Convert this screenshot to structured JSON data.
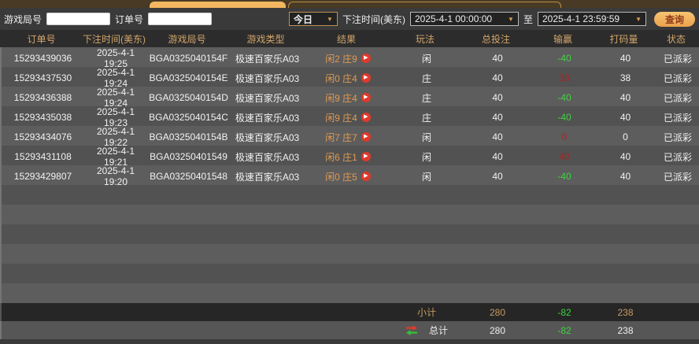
{
  "filters": {
    "game_round_label": "游戏局号",
    "game_round_value": "",
    "order_label": "订单号",
    "order_value": "",
    "range_selected": "今日",
    "dropdown_arrow": "▼",
    "bet_time_label": "下注时间(美东)",
    "start_time": "2025-4-1 00:00:00",
    "to_label": "至",
    "end_time": "2025-4-1 23:59:59",
    "query_button": "查询"
  },
  "table": {
    "headers": [
      "订单号",
      "下注时间(美东)",
      "游戏局号",
      "游戏类型",
      "结果",
      "玩法",
      "总投注",
      "输赢",
      "打码量",
      "状态"
    ],
    "play_glyph": "▶",
    "rows": [
      {
        "order_id": "15293439036",
        "bet_time": "2025-4-1 19:25",
        "round_id": "BGA0325040154F",
        "game_type": "极速百家乐A03",
        "result": "闲2 庄9",
        "play": "闲",
        "total_bet": "40",
        "win_loss": "-40",
        "win_loss_color": "green",
        "turnover": "40",
        "status": "已派彩"
      },
      {
        "order_id": "15293437530",
        "bet_time": "2025-4-1 19:24",
        "round_id": "BGA0325040154E",
        "game_type": "极速百家乐A03",
        "result": "闲0 庄4",
        "play": "庄",
        "total_bet": "40",
        "win_loss": "38",
        "win_loss_color": "red",
        "turnover": "38",
        "status": "已派彩"
      },
      {
        "order_id": "15293436388",
        "bet_time": "2025-4-1 19:24",
        "round_id": "BGA0325040154D",
        "game_type": "极速百家乐A03",
        "result": "闲9 庄4",
        "play": "庄",
        "total_bet": "40",
        "win_loss": "-40",
        "win_loss_color": "green",
        "turnover": "40",
        "status": "已派彩"
      },
      {
        "order_id": "15293435038",
        "bet_time": "2025-4-1 19:23",
        "round_id": "BGA0325040154C",
        "game_type": "极速百家乐A03",
        "result": "闲9 庄4",
        "play": "庄",
        "total_bet": "40",
        "win_loss": "-40",
        "win_loss_color": "green",
        "turnover": "40",
        "status": "已派彩"
      },
      {
        "order_id": "15293434076",
        "bet_time": "2025-4-1 19:22",
        "round_id": "BGA0325040154B",
        "game_type": "极速百家乐A03",
        "result": "闲7 庄7",
        "play": "闲",
        "total_bet": "40",
        "win_loss": "0",
        "win_loss_color": "red",
        "turnover": "0",
        "status": "已派彩"
      },
      {
        "order_id": "15293431108",
        "bet_time": "2025-4-1 19:21",
        "round_id": "BGA03250401549",
        "game_type": "极速百家乐A03",
        "result": "闲6 庄1",
        "play": "闲",
        "total_bet": "40",
        "win_loss": "40",
        "win_loss_color": "red",
        "turnover": "40",
        "status": "已派彩"
      },
      {
        "order_id": "15293429807",
        "bet_time": "2025-4-1 19:20",
        "round_id": "BGA03250401548",
        "game_type": "极速百家乐A03",
        "result": "闲0 庄5",
        "play": "闲",
        "total_bet": "40",
        "win_loss": "-40",
        "win_loss_color": "green",
        "turnover": "40",
        "status": "已派彩"
      }
    ],
    "subtotal": {
      "label": "小计",
      "total_bet": "280",
      "win_loss": "-82",
      "win_loss_color": "green",
      "turnover": "238"
    },
    "total": {
      "label": "总计",
      "total_bet": "280",
      "win_loss": "-82",
      "win_loss_color": "green",
      "turnover": "238"
    }
  },
  "colors": {
    "accent_orange": "#f3b660",
    "header_text": "#d2a56b",
    "win_red": "#a62626",
    "loss_green": "#3fd43f",
    "play_icon_red": "#e0392b"
  }
}
